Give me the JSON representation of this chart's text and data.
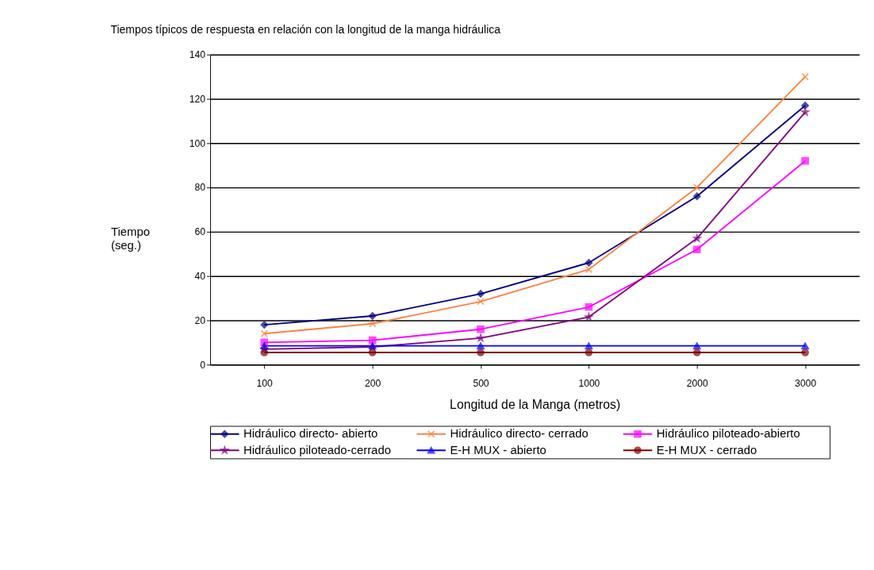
{
  "chart_data": {
    "type": "line",
    "title": "Tiempos típicos de respuesta en relación con la longitud de la manga hidráulica",
    "xlabel": "Longitud de la Manga (metros)",
    "ylabel": "Tiempo (seg.)",
    "categories": [
      "100",
      "200",
      "500",
      "1000",
      "2000",
      "3000"
    ],
    "series": [
      {
        "name": "Hidráulico directo- abierto",
        "color": "#000080",
        "marker": "diamond",
        "values": [
          18,
          22,
          32,
          46,
          76,
          117
        ]
      },
      {
        "name": "Hidráulico directo- cerrado",
        "color": "#ff8040",
        "marker": "cross",
        "values": [
          14,
          18.5,
          28.5,
          43,
          80,
          130
        ]
      },
      {
        "name": "Hidráulico piloteado-abierto",
        "color": "#ff00ff",
        "marker": "square",
        "values": [
          10,
          11,
          16,
          26,
          52,
          92
        ]
      },
      {
        "name": "Hidráulico piloteado-cerrado",
        "color": "#800080",
        "marker": "star",
        "values": [
          7,
          8,
          12,
          21.5,
          57,
          114
        ]
      },
      {
        "name": "E-H MUX - abierto",
        "color": "#0000ff",
        "marker": "triangle",
        "values": [
          8.5,
          8.5,
          8.5,
          8.5,
          8.5,
          8.5
        ]
      },
      {
        "name": "E-H MUX - cerrado",
        "color": "#800000",
        "marker": "circle",
        "values": [
          5.5,
          5.5,
          5.5,
          5.5,
          5.5,
          5.5
        ]
      }
    ],
    "ylim": [
      0,
      140
    ],
    "yticks": [
      0,
      20,
      40,
      60,
      80,
      100,
      120,
      140
    ],
    "grid": "y",
    "legend": "bottom"
  }
}
